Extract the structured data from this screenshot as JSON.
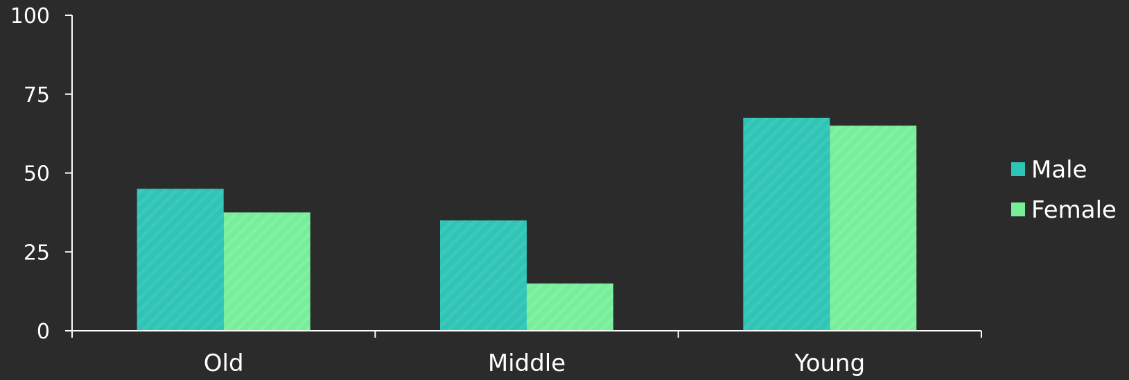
{
  "chart_data": {
    "type": "bar",
    "categories": [
      "Old",
      "Middle",
      "Young"
    ],
    "series": [
      {
        "name": "Male",
        "values": [
          45,
          35,
          67.5
        ],
        "color": "#2ec4b6"
      },
      {
        "name": "Female",
        "values": [
          37.5,
          15,
          65
        ],
        "color": "#76ee9a"
      }
    ],
    "yticks": [
      0,
      25,
      50,
      75,
      100
    ],
    "ylim": [
      0,
      100
    ],
    "xlabel": "",
    "ylabel": "",
    "grid": false,
    "legend": "right",
    "pattern": "diagonal-stripes",
    "background": "#2b2b2b",
    "axis_color": "#ffffff"
  }
}
